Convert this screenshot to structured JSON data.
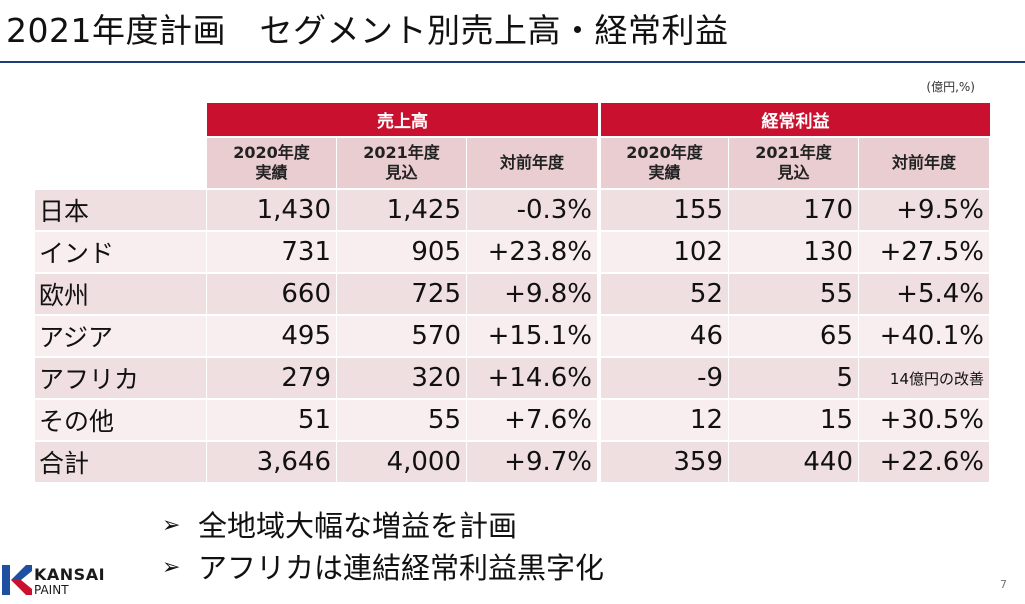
{
  "title": "2021年度計画　セグメント別売上高・経常利益",
  "unit": "(億円,%)",
  "groups": {
    "sales": "売上高",
    "profit": "経常利益"
  },
  "subheaders": {
    "s2020": [
      "2020年度",
      "実績"
    ],
    "s2021": [
      "2021年度",
      "見込"
    ],
    "syoy": "対前年度",
    "p2020": [
      "2020年度",
      "実績"
    ],
    "p2021": [
      "2021年度",
      "見込"
    ],
    "pyoy": "対前年度"
  },
  "rows": [
    {
      "region": "日本",
      "s2020": "1,430",
      "s2021": "1,425",
      "syoy": "-0.3%",
      "p2020": "155",
      "p2021": "170",
      "pyoy": "+9.5%"
    },
    {
      "region": "インド",
      "s2020": "731",
      "s2021": "905",
      "syoy": "+23.8%",
      "p2020": "102",
      "p2021": "130",
      "pyoy": "+27.5%"
    },
    {
      "region": "欧州",
      "s2020": "660",
      "s2021": "725",
      "syoy": "+9.8%",
      "p2020": "52",
      "p2021": "55",
      "pyoy": "+5.4%"
    },
    {
      "region": "アジア",
      "s2020": "495",
      "s2021": "570",
      "syoy": "+15.1%",
      "p2020": "46",
      "p2021": "65",
      "pyoy": "+40.1%"
    },
    {
      "region": "アフリカ",
      "s2020": "279",
      "s2021": "320",
      "syoy": "+14.6%",
      "p2020": "-9",
      "p2021": "5",
      "pyoy": "14億円の改善"
    },
    {
      "region": "その他",
      "s2020": "51",
      "s2021": "55",
      "syoy": "+7.6%",
      "p2020": "12",
      "p2021": "15",
      "pyoy": "+30.5%"
    },
    {
      "region": "合計",
      "s2020": "3,646",
      "s2021": "4,000",
      "syoy": "+9.7%",
      "p2020": "359",
      "p2021": "440",
      "pyoy": "+22.6%"
    }
  ],
  "bullets": [
    "全地域大幅な増益を計画",
    "アフリカは連結経常利益黒字化"
  ],
  "logo": {
    "line1": "KANSAI",
    "line2": "PAINT"
  },
  "page_number": "7",
  "colors": {
    "accent_red": "#c9102e",
    "title_rule": "#1f3d7a",
    "header_pink": "#e9cdd0"
  },
  "icons": {
    "bullet": "arrowhead-bullet-icon",
    "logo": "kansai-paint-logo-icon"
  }
}
